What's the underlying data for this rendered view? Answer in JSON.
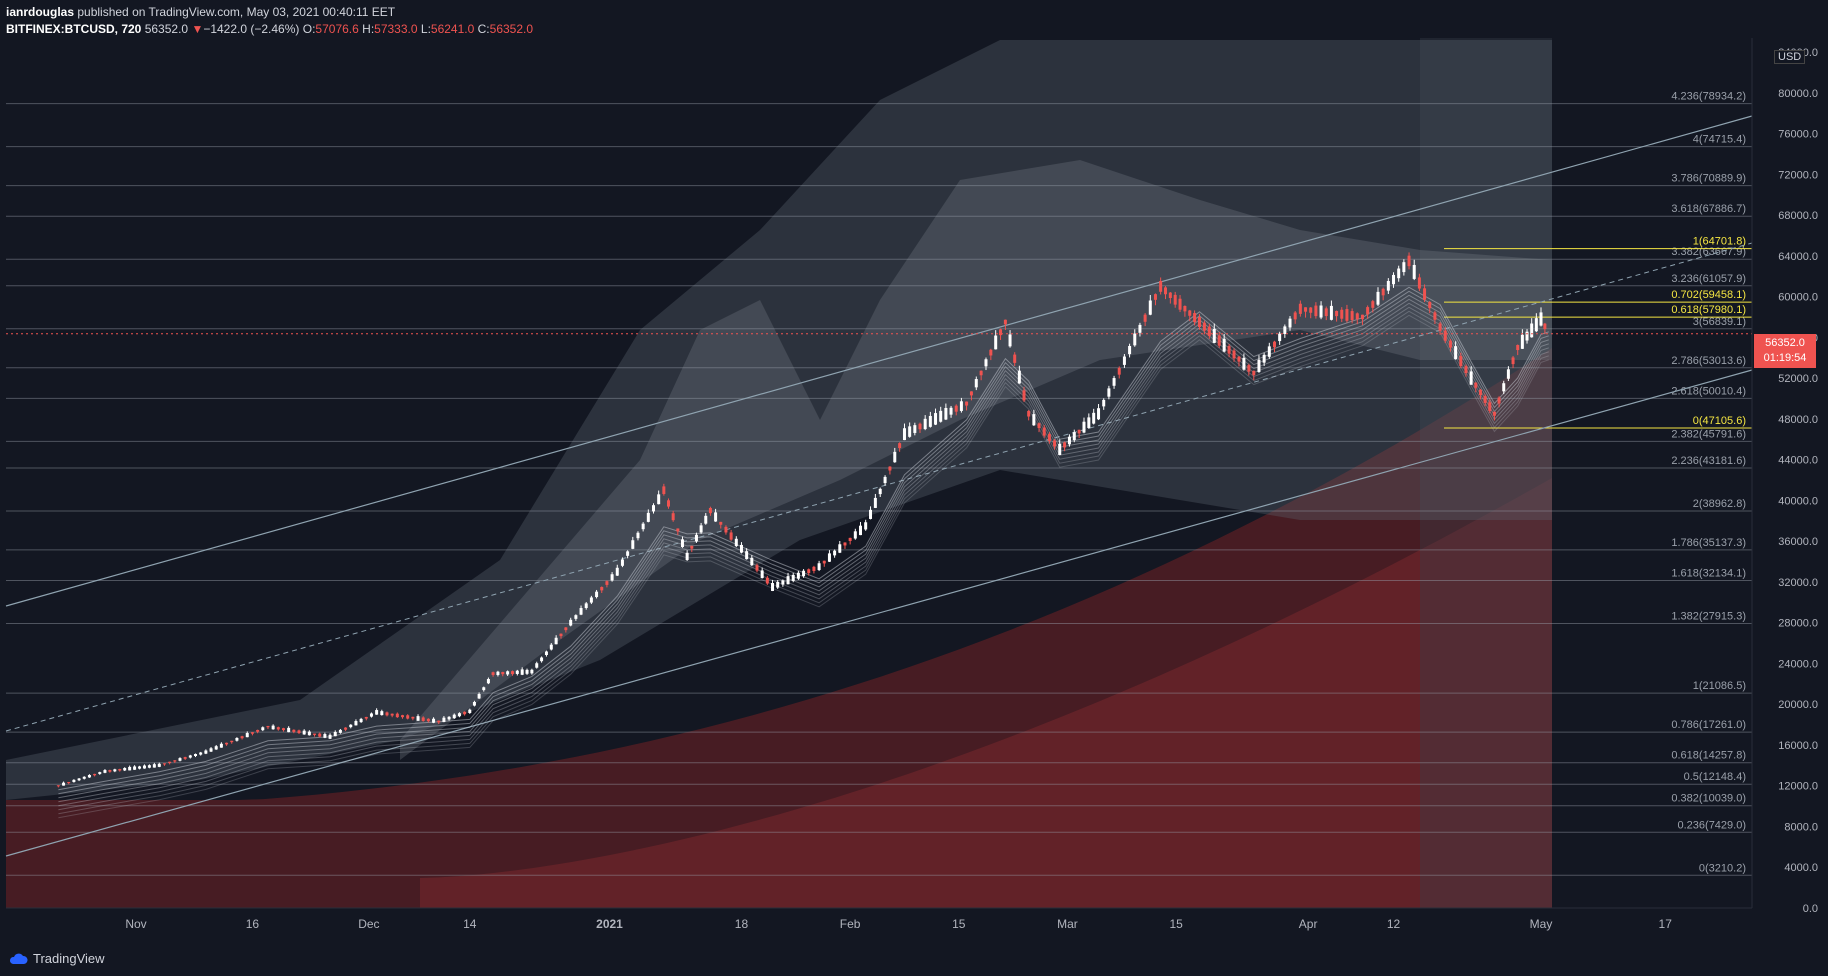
{
  "header": {
    "user": "ianrdouglas",
    "published": "published on TradingView.com, May 03, 2021 00:40:11 EET",
    "symbol": "BITFINEX:BTCUSD, 720",
    "last": "56352.0",
    "change": "−1422.0 (−2.46%)",
    "o_label": "O:",
    "o_val": "57076.6",
    "h_label": "H:",
    "h_val": "57333.0",
    "l_label": "L:",
    "l_val": "56241.0",
    "c_label": "C:",
    "c_val": "56352.0"
  },
  "price_label": {
    "price": "56352.0",
    "countdown": "01:19:54"
  },
  "currency": "USD",
  "footer": {
    "brand": "TradingView"
  },
  "colors": {
    "bg": "#131722",
    "up": "#ffffff",
    "down": "#ef5350",
    "fib_key": "#f5e642",
    "grid": "#2a2e39",
    "channel": "#8fa3b0"
  },
  "chart_data": {
    "type": "candlestick",
    "yscale": "log",
    "ylim": [
      0,
      84000
    ],
    "y_ticks": [
      "84000.0",
      "80000.0",
      "76000.0",
      "72000.0",
      "68000.0",
      "64000.0",
      "60000.0",
      "56000.0",
      "52000.0",
      "48000.0",
      "44000.0",
      "40000.0",
      "36000.0",
      "32000.0",
      "28000.0",
      "24000.0",
      "20000.0",
      "16000.0",
      "12000.0",
      "8000.0",
      "4000.0",
      "0.0"
    ],
    "x_ticks": [
      "Nov",
      "16",
      "Dec",
      "14",
      "2021",
      "18",
      "Feb",
      "15",
      "Mar",
      "15",
      "Apr",
      "12",
      "May",
      "17"
    ],
    "fib_levels": [
      {
        "label": "4.236(78934.2)",
        "value": 78934.2
      },
      {
        "label": "4(74715.4)",
        "value": 74715.4
      },
      {
        "label": "3.786(70889.9)",
        "value": 70889.9
      },
      {
        "label": "3.618(67886.7)",
        "value": 67886.7
      },
      {
        "label": "3.382(63667.9)",
        "value": 63667.9
      },
      {
        "label": "3.236(61057.9)",
        "value": 61057.9
      },
      {
        "label": "3(56839.1)",
        "value": 56839.1
      },
      {
        "label": "2.786(53013.6)",
        "value": 53013.6
      },
      {
        "label": "2.618(50010.4)",
        "value": 50010.4
      },
      {
        "label": "2.382(45791.6)",
        "value": 45791.6
      },
      {
        "label": "2.236(43181.6)",
        "value": 43181.6
      },
      {
        "label": "2(38962.8)",
        "value": 38962.8
      },
      {
        "label": "1.786(35137.3)",
        "value": 35137.3
      },
      {
        "label": "1.618(32134.1)",
        "value": 32134.1
      },
      {
        "label": "1.382(27915.3)",
        "value": 27915.3
      },
      {
        "label": "1(21086.5)",
        "value": 21086.5
      },
      {
        "label": "0.786(17261.0)",
        "value": 17261.0
      },
      {
        "label": "0.618(14257.8)",
        "value": 14257.8
      },
      {
        "label": "0.5(12148.4)",
        "value": 12148.4
      },
      {
        "label": "0.382(10039.0)",
        "value": 10039.0
      },
      {
        "label": "0.236(7429.0)",
        "value": 7429.0
      },
      {
        "label": "0(3210.2)",
        "value": 3210.2
      }
    ],
    "key_fibs": [
      {
        "label": "1(64701.8)",
        "value": 64701.8
      },
      {
        "label": "0.702(59458.1)",
        "value": 59458.1
      },
      {
        "label": "0.618(57980.1)",
        "value": 57980.1
      },
      {
        "label": "0(47105.6)",
        "value": 47105.6
      }
    ],
    "price_path": [
      {
        "d": "2020-10-22",
        "p": 12000
      },
      {
        "d": "2020-10-28",
        "p": 13400
      },
      {
        "d": "2020-11-04",
        "p": 14000
      },
      {
        "d": "2020-11-10",
        "p": 15300
      },
      {
        "d": "2020-11-18",
        "p": 17800
      },
      {
        "d": "2020-11-26",
        "p": 16800
      },
      {
        "d": "2020-12-02",
        "p": 19200
      },
      {
        "d": "2020-12-10",
        "p": 18300
      },
      {
        "d": "2020-12-14",
        "p": 19300
      },
      {
        "d": "2020-12-17",
        "p": 23000
      },
      {
        "d": "2020-12-22",
        "p": 23200
      },
      {
        "d": "2020-12-27",
        "p": 28000
      },
      {
        "d": "2021-01-02",
        "p": 33000
      },
      {
        "d": "2021-01-08",
        "p": 41000
      },
      {
        "d": "2021-01-11",
        "p": 34500
      },
      {
        "d": "2021-01-14",
        "p": 39000
      },
      {
        "d": "2021-01-22",
        "p": 31500
      },
      {
        "d": "2021-01-28",
        "p": 33500
      },
      {
        "d": "2021-02-03",
        "p": 37500
      },
      {
        "d": "2021-02-08",
        "p": 46500
      },
      {
        "d": "2021-02-16",
        "p": 49500
      },
      {
        "d": "2021-02-21",
        "p": 57500
      },
      {
        "d": "2021-02-24",
        "p": 48500
      },
      {
        "d": "2021-02-28",
        "p": 45000
      },
      {
        "d": "2021-03-05",
        "p": 48500
      },
      {
        "d": "2021-03-13",
        "p": 61000
      },
      {
        "d": "2021-03-18",
        "p": 57500
      },
      {
        "d": "2021-03-25",
        "p": 52500
      },
      {
        "d": "2021-03-31",
        "p": 58800
      },
      {
        "d": "2021-04-08",
        "p": 58000
      },
      {
        "d": "2021-04-14",
        "p": 63500
      },
      {
        "d": "2021-04-18",
        "p": 57000
      },
      {
        "d": "2021-04-22",
        "p": 52000
      },
      {
        "d": "2021-04-25",
        "p": 48500
      },
      {
        "d": "2021-04-28",
        "p": 55000
      },
      {
        "d": "2021-05-01",
        "p": 57800
      },
      {
        "d": "2021-05-02",
        "p": 56352
      }
    ]
  }
}
